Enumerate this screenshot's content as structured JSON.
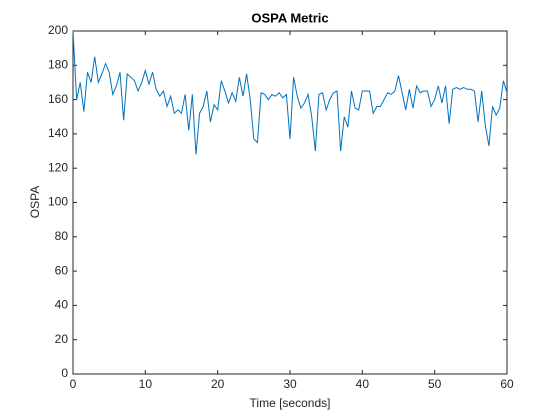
{
  "chart_data": {
    "type": "line",
    "title": "OSPA Metric",
    "x_label": "Time [seconds]",
    "y_label": "OSPA",
    "x": [
      0,
      0.5,
      1,
      1.5,
      2,
      2.5,
      3,
      3.5,
      4,
      4.5,
      5,
      5.5,
      6,
      6.5,
      7,
      7.5,
      8,
      8.5,
      9,
      9.5,
      10,
      10.5,
      11,
      11.5,
      12,
      12.5,
      13,
      13.5,
      14,
      14.5,
      15,
      15.5,
      16,
      16.5,
      17,
      17.5,
      18,
      18.5,
      19,
      19.5,
      20,
      20.5,
      21,
      21.5,
      22,
      22.5,
      23,
      23.5,
      24,
      24.5,
      25,
      25.5,
      26,
      26.5,
      27,
      27.5,
      28,
      28.5,
      29,
      29.5,
      30,
      30.5,
      31,
      31.5,
      32,
      32.5,
      33,
      33.5,
      34,
      34.5,
      35,
      35.5,
      36,
      36.5,
      37,
      37.5,
      38,
      38.5,
      39,
      39.5,
      40,
      40.5,
      41,
      41.5,
      42,
      42.5,
      43,
      43.5,
      44,
      44.5,
      45,
      45.5,
      46,
      46.5,
      47,
      47.5,
      48,
      48.5,
      49,
      49.5,
      50,
      50.5,
      51,
      51.5,
      52,
      52.5,
      53,
      53.5,
      54,
      54.5,
      55,
      55.5,
      56,
      56.5,
      57,
      57.5,
      58,
      58.5,
      59,
      59.5,
      60
    ],
    "series": [
      {
        "color": "#0072bd",
        "values": [
          200,
          160,
          170,
          153,
          176,
          170,
          185,
          170,
          175,
          181,
          176,
          163,
          168,
          176,
          148,
          175,
          173,
          171,
          165,
          170,
          177,
          169,
          176,
          166,
          162,
          165,
          156,
          162,
          152,
          154,
          152,
          163,
          142,
          163,
          128,
          152,
          156,
          165,
          147,
          157,
          154,
          171,
          165,
          158,
          164,
          159,
          173,
          162,
          175,
          160,
          137,
          135,
          164,
          163,
          160,
          163,
          162,
          164,
          161,
          163,
          137,
          173,
          162,
          155,
          158,
          163,
          150,
          130,
          163,
          164,
          154,
          160,
          164,
          165,
          130,
          150,
          144,
          165,
          155,
          154,
          165,
          165,
          165,
          152,
          156,
          156,
          160,
          164,
          163,
          165,
          174,
          164,
          154,
          166,
          155,
          168,
          164,
          165,
          165,
          156,
          160,
          168,
          158,
          168,
          146,
          166,
          167,
          166,
          167,
          166,
          166,
          165,
          147,
          165,
          145,
          133,
          156,
          151,
          155,
          171,
          164
        ]
      }
    ],
    "xlim": [
      0,
      60
    ],
    "xticks": [
      0,
      10,
      20,
      30,
      40,
      50,
      60
    ],
    "ylim": [
      0,
      200
    ],
    "yticks": [
      0,
      20,
      40,
      60,
      80,
      100,
      120,
      140,
      160,
      180,
      200
    ]
  }
}
